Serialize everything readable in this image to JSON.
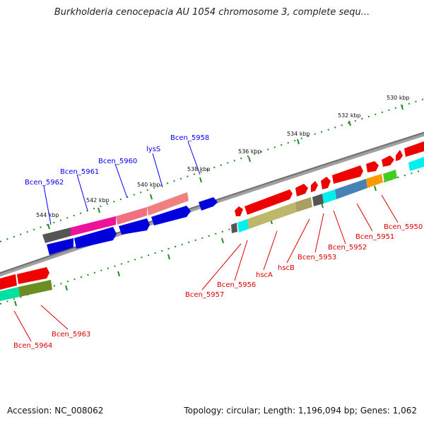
{
  "title": "Burkholderia cenocepacia AU 1054 chromosome 3, complete sequ...",
  "footer": {
    "accession": "Accession: NC_008062",
    "summary": "Topology: circular; Length: 1,196,094 bp; Genes: 1,062"
  },
  "scale_labels": [
    "530 kbp",
    "532 kbp",
    "534 kbp",
    "536 kbp",
    "538 kbp",
    "540 kbp",
    "542 kbp",
    "544 kbp"
  ],
  "genes_top": [
    "Bcen_5962",
    "Bcen_5961",
    "Bcen_5960",
    "lysS",
    "Bcen_5958"
  ],
  "genes_bottom": [
    "Bcen_5950",
    "Bcen_5951",
    "Bcen_5952",
    "Bcen_5953",
    "hscB",
    "hscA",
    "Bcen_5956",
    "Bcen_5957",
    "Bcen_5963",
    "Bcen_5964"
  ],
  "colors": {
    "top_label": "#0000ff",
    "bottom_label": "#dd0000",
    "tick": "#228b22",
    "backbone": "#808080"
  }
}
